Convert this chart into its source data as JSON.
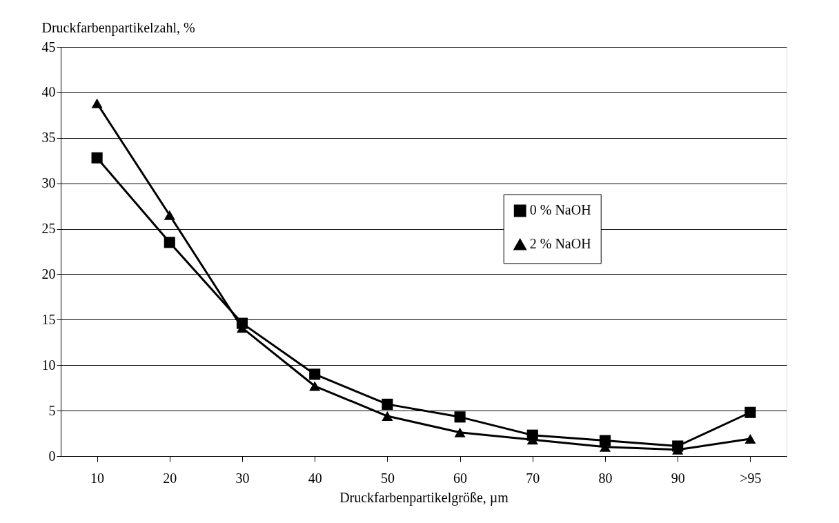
{
  "chart_data": {
    "type": "line",
    "xlabel": "Druckfarbenpartikelgröße, µm",
    "ylabel": "Druckfarbenpartikelzahl, %",
    "categories": [
      "10",
      "20",
      "30",
      "40",
      "50",
      "60",
      "70",
      "80",
      "90",
      ">95"
    ],
    "series": [
      {
        "name": "0 % NaOH",
        "color": "#000000",
        "marker": "square",
        "values": [
          32.8,
          23.5,
          14.6,
          9.0,
          5.7,
          4.3,
          2.3,
          1.7,
          1.1,
          4.8
        ]
      },
      {
        "name": "2 % NaOH",
        "color": "#000000",
        "marker": "triangle",
        "values": [
          38.8,
          26.5,
          14.1,
          7.7,
          4.4,
          2.6,
          1.8,
          1.0,
          0.7,
          1.9
        ]
      }
    ],
    "ylim": [
      0,
      45
    ],
    "yticks": [
      0,
      5,
      10,
      15,
      20,
      25,
      30,
      35,
      40,
      45
    ],
    "grid": "y",
    "legend": "right",
    "line_style": "solid"
  }
}
